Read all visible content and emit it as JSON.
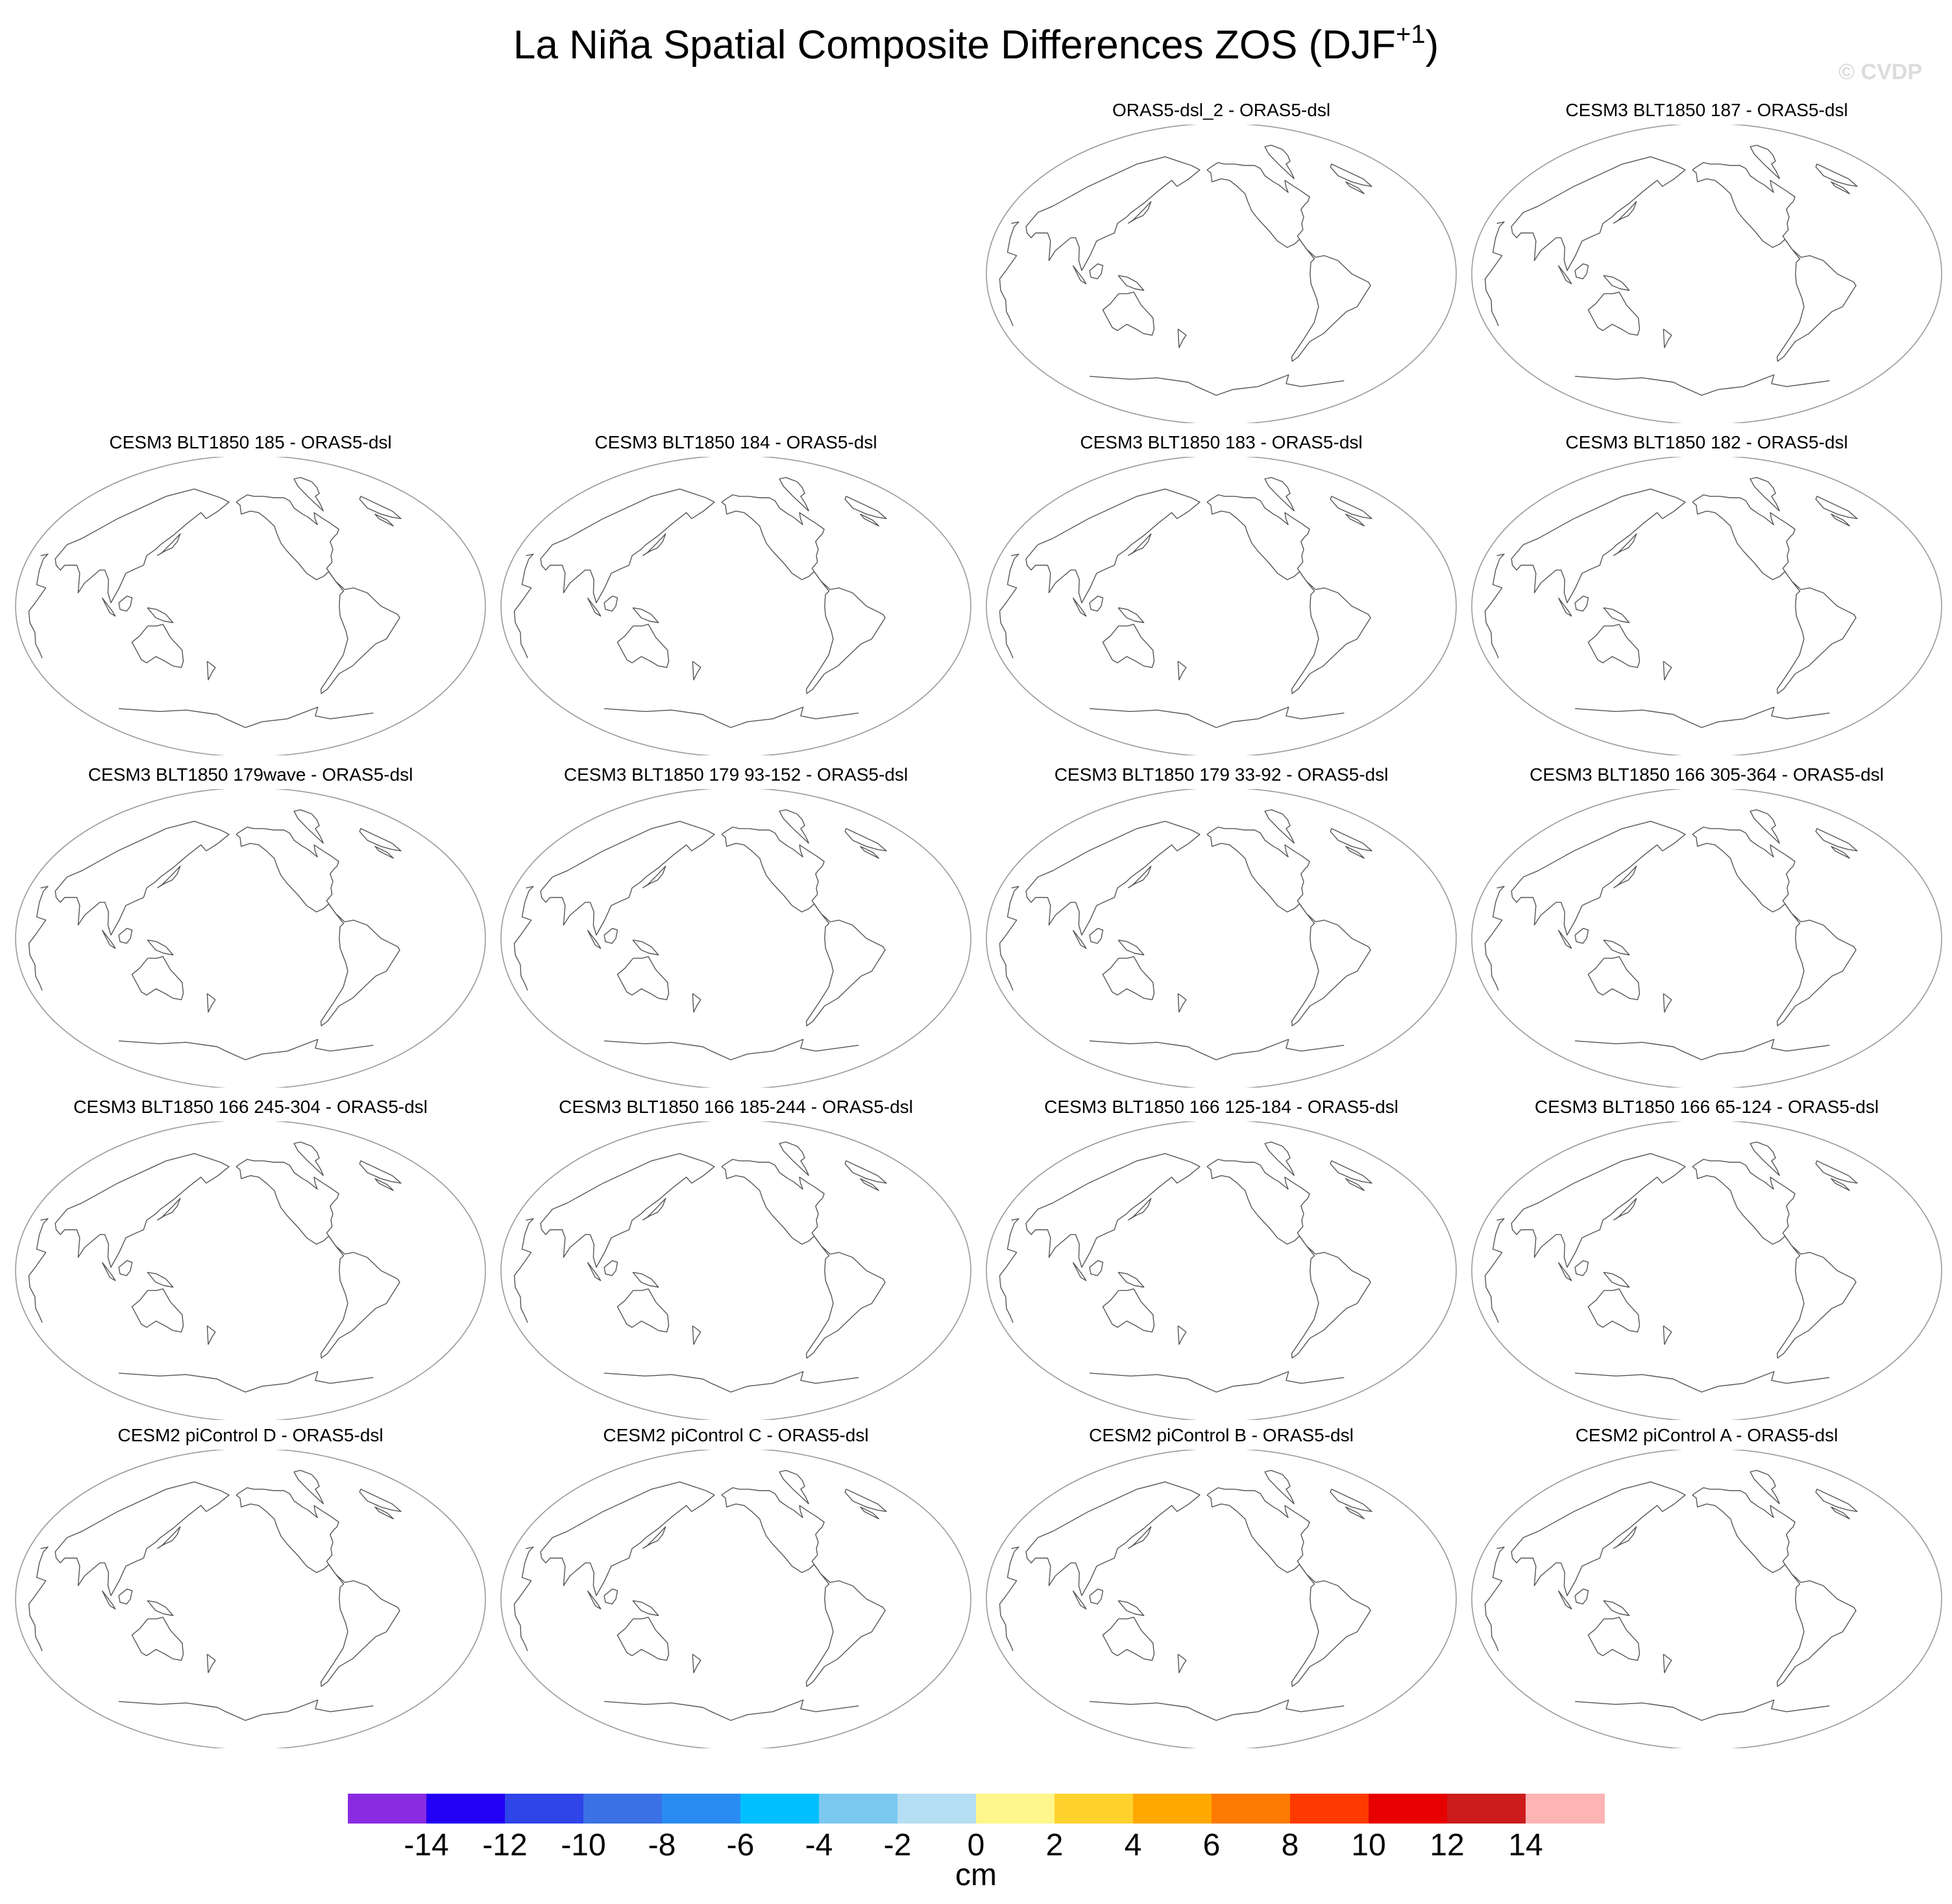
{
  "watermark": "© CVDP",
  "chart_data": {
    "type": "heatmap",
    "title": "La Niña Spatial Composite Differences ZOS (DJF",
    "title_superscript": "+1",
    "title_suffix": ")",
    "projection": "robinson",
    "panels": [
      {
        "row": 0,
        "col": 2,
        "title": "ORAS5-dsl_2 - ORAS5-dsl"
      },
      {
        "row": 0,
        "col": 3,
        "title": "CESM3 BLT1850 187 - ORAS5-dsl"
      },
      {
        "row": 1,
        "col": 0,
        "title": "CESM3 BLT1850 185 - ORAS5-dsl"
      },
      {
        "row": 1,
        "col": 1,
        "title": "CESM3 BLT1850 184 - ORAS5-dsl"
      },
      {
        "row": 1,
        "col": 2,
        "title": "CESM3 BLT1850 183 - ORAS5-dsl"
      },
      {
        "row": 1,
        "col": 3,
        "title": "CESM3 BLT1850 182 - ORAS5-dsl"
      },
      {
        "row": 2,
        "col": 0,
        "title": "CESM3 BLT1850 179wave - ORAS5-dsl"
      },
      {
        "row": 2,
        "col": 1,
        "title": "CESM3 BLT1850 179 93-152 - ORAS5-dsl"
      },
      {
        "row": 2,
        "col": 2,
        "title": "CESM3 BLT1850 179 33-92 - ORAS5-dsl"
      },
      {
        "row": 2,
        "col": 3,
        "title": "CESM3 BLT1850 166 305-364 - ORAS5-dsl"
      },
      {
        "row": 3,
        "col": 0,
        "title": "CESM3 BLT1850 166 245-304 - ORAS5-dsl"
      },
      {
        "row": 3,
        "col": 1,
        "title": "CESM3 BLT1850 166 185-244 - ORAS5-dsl"
      },
      {
        "row": 3,
        "col": 2,
        "title": "CESM3 BLT1850 166 125-184 - ORAS5-dsl"
      },
      {
        "row": 3,
        "col": 3,
        "title": "CESM3 BLT1850 166 65-124 - ORAS5-dsl"
      },
      {
        "row": 4,
        "col": 0,
        "title": "CESM2 piControl D - ORAS5-dsl"
      },
      {
        "row": 4,
        "col": 1,
        "title": "CESM2 piControl C - ORAS5-dsl"
      },
      {
        "row": 4,
        "col": 2,
        "title": "CESM2 piControl B - ORAS5-dsl"
      },
      {
        "row": 4,
        "col": 3,
        "title": "CESM2 piControl A - ORAS5-dsl"
      }
    ],
    "colorbar": {
      "units": "cm",
      "ticks": [
        "-14",
        "-12",
        "-10",
        "-8",
        "-6",
        "-4",
        "-2",
        "0",
        "2",
        "4",
        "6",
        "8",
        "10",
        "12",
        "14"
      ],
      "colors": [
        "#8a2be2",
        "#2200f5",
        "#2f45e8",
        "#3a72e6",
        "#2a8cf2",
        "#00bfff",
        "#7ac8f0",
        "#b4def2",
        "#fff68c",
        "#ffd22e",
        "#ffa800",
        "#ff7a00",
        "#ff3a00",
        "#e60000",
        "#cc1c1c",
        "#ffb4b4"
      ]
    }
  }
}
